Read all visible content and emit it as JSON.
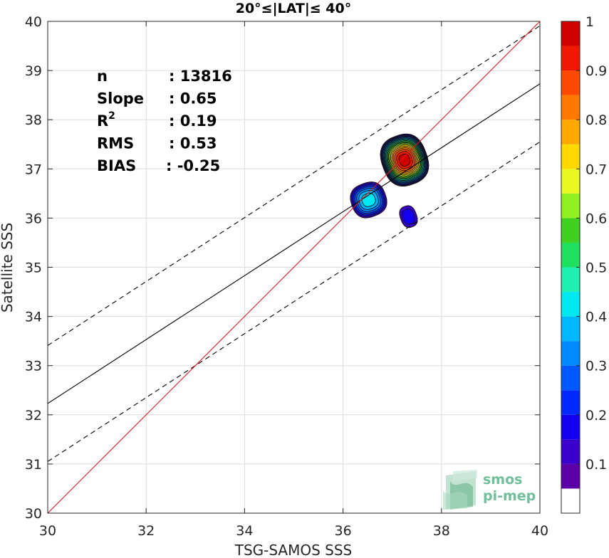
{
  "chart_data": {
    "type": "heatmap",
    "title": "20°≤|LAT|≤ 40°",
    "xlabel": "TSG-SAMOS SSS",
    "ylabel": "Satellite SSS",
    "xlim": [
      30,
      40
    ],
    "ylim": [
      30,
      40
    ],
    "x_ticks": [
      "30",
      "32",
      "34",
      "36",
      "38",
      "40"
    ],
    "y_ticks": [
      "30",
      "31",
      "32",
      "33",
      "34",
      "35",
      "36",
      "37",
      "38",
      "39",
      "40"
    ],
    "grid": true,
    "stats": [
      {
        "label": "n",
        "value": ": 13816"
      },
      {
        "label": "Slope",
        "value": ": 0.65"
      },
      {
        "label": "R",
        "sup": "2",
        "value": ": 0.19"
      },
      {
        "label": "RMS",
        "value": ": 0.53"
      },
      {
        "label": "BIAS",
        "value": ": -0.25"
      }
    ],
    "lines": {
      "identity": {
        "slope": 1,
        "intercept": 0,
        "color": "#e8141b"
      },
      "regression": {
        "slope": 0.65,
        "intercept": 12.73,
        "color": "#000000"
      },
      "upper_bound": {
        "slope": 0.65,
        "intercept": 13.91,
        "style": "dashed"
      },
      "lower_bound": {
        "slope": 0.65,
        "intercept": 11.55,
        "style": "dashed"
      }
    },
    "density_clusters": [
      {
        "cx": 37.25,
        "cy": 37.18,
        "rx": 0.47,
        "ry": 0.53,
        "peak": 0.95
      },
      {
        "cx": 36.52,
        "cy": 36.37,
        "rx": 0.38,
        "ry": 0.37,
        "peak": 0.4
      },
      {
        "cx": 37.33,
        "cy": 36.03,
        "rx": 0.2,
        "ry": 0.27,
        "peak": 0.15
      }
    ],
    "colorbar": {
      "levels": [
        0,
        0.05,
        0.1,
        0.15,
        0.2,
        0.25,
        0.3,
        0.35,
        0.4,
        0.45,
        0.5,
        0.55,
        0.6,
        0.65,
        0.7,
        0.75,
        0.8,
        0.85,
        0.9,
        0.95,
        1
      ],
      "colors": [
        "#ffffff",
        "#5a00a6",
        "#3a00cc",
        "#1400f0",
        "#0028ff",
        "#0058ff",
        "#0088ff",
        "#00b8ff",
        "#00e8f0",
        "#20f0b0",
        "#20e060",
        "#40d020",
        "#90f020",
        "#e8f820",
        "#ffd800",
        "#ffa800",
        "#ff7800",
        "#ff4800",
        "#f01800",
        "#d00000",
        "#8a0000"
      ],
      "tick_labels": [
        "0.1",
        "0.2",
        "0.3",
        "0.4",
        "0.5",
        "0.6",
        "0.7",
        "0.8",
        "0.9",
        "1"
      ],
      "tick_values": [
        0.1,
        0.2,
        0.3,
        0.4,
        0.5,
        0.6,
        0.7,
        0.8,
        0.9,
        1.0
      ]
    }
  },
  "logo": {
    "line1": "smos",
    "line2": "pi-mep"
  }
}
